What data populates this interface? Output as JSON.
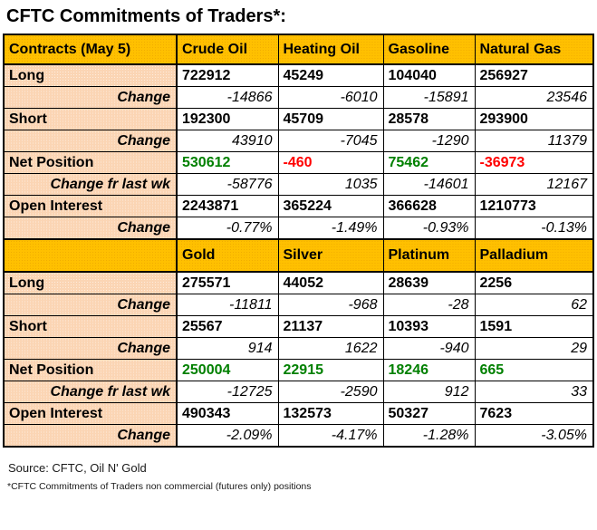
{
  "title": "CFTC Commitments of Traders*:",
  "colors": {
    "header_bg": "#FFC000",
    "label_bg": "#FBD5B4",
    "positive": "#008000",
    "negative": "#FF0000",
    "border": "#000000"
  },
  "chart_data": [
    {
      "type": "table",
      "columns": [
        "Contracts (May 5)",
        "Crude Oil",
        "Heating Oil",
        "Gasoline",
        "Natural Gas"
      ],
      "rows": [
        {
          "label": "Long",
          "kind": "value",
          "v": [
            "722912",
            "45249",
            "104040",
            "256927"
          ]
        },
        {
          "label": "Change",
          "kind": "change",
          "v": [
            "-14866",
            "-6010",
            "-15891",
            "23546"
          ]
        },
        {
          "label": "Short",
          "kind": "value",
          "v": [
            "192300",
            "45709",
            "28578",
            "293900"
          ]
        },
        {
          "label": "Change",
          "kind": "change",
          "v": [
            "43910",
            "-7045",
            "-1290",
            "11379"
          ]
        },
        {
          "label": "Net Position",
          "kind": "net",
          "v": [
            "530612",
            "-460",
            "75462",
            "-36973"
          ]
        },
        {
          "label": "Change fr last wk",
          "kind": "change",
          "v": [
            "-58776",
            "1035",
            "-14601",
            "12167"
          ]
        },
        {
          "label": "Open Interest",
          "kind": "value",
          "v": [
            "2243871",
            "365224",
            "366628",
            "1210773"
          ]
        },
        {
          "label": "Change",
          "kind": "change",
          "v": [
            "-0.77%",
            "-1.49%",
            "-0.93%",
            "-0.13%"
          ]
        }
      ]
    },
    {
      "type": "table",
      "columns": [
        "",
        "Gold",
        "Silver",
        "Platinum",
        "Palladium"
      ],
      "rows": [
        {
          "label": "Long",
          "kind": "value",
          "v": [
            "275571",
            "44052",
            "28639",
            "2256"
          ]
        },
        {
          "label": "Change",
          "kind": "change",
          "v": [
            "-11811",
            "-968",
            "-28",
            "62"
          ]
        },
        {
          "label": "Short",
          "kind": "value",
          "v": [
            "25567",
            "21137",
            "10393",
            "1591"
          ]
        },
        {
          "label": "Change",
          "kind": "change",
          "v": [
            "914",
            "1622",
            "-940",
            "29"
          ]
        },
        {
          "label": "Net Position",
          "kind": "net",
          "v": [
            "250004",
            "22915",
            "18246",
            "665"
          ]
        },
        {
          "label": "Change fr last wk",
          "kind": "change",
          "v": [
            "-12725",
            "-2590",
            "912",
            "33"
          ]
        },
        {
          "label": "Open Interest",
          "kind": "value",
          "v": [
            "490343",
            "132573",
            "50327",
            "7623"
          ]
        },
        {
          "label": "Change",
          "kind": "change",
          "v": [
            "-2.09%",
            "-4.17%",
            "-1.28%",
            "-3.05%"
          ]
        }
      ]
    }
  ],
  "footer": {
    "source": "Source: CFTC, Oil N' Gold",
    "note": "*CFTC Commitments of Traders non commercial (futures only) positions"
  }
}
